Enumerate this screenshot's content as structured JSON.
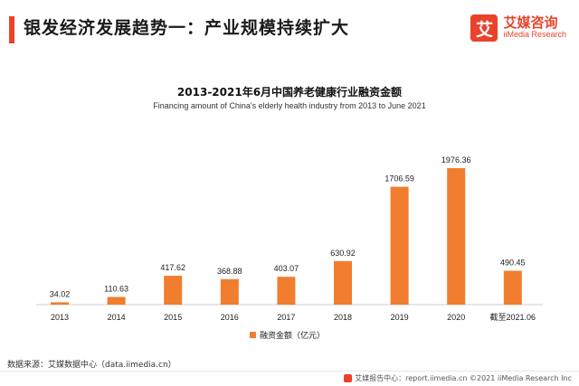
{
  "header": {
    "title": "银发经济发展趋势一：产业规模持续扩大",
    "logo_mark": "艾",
    "logo_cn": "艾媒咨询",
    "logo_en": "iiMedia Research"
  },
  "chart_data": {
    "type": "bar",
    "title": "2013-2021年6月中国养老健康行业融资金额",
    "subtitle": "Financing amount of China's elderly health industry from 2013 to June 2021",
    "categories": [
      "2013",
      "2014",
      "2015",
      "2016",
      "2017",
      "2018",
      "2019",
      "2020",
      "截至2021.06"
    ],
    "series": [
      {
        "name": "融资金额（亿元）",
        "values": [
          34.02,
          110.63,
          417.62,
          368.88,
          403.07,
          630.92,
          1706.59,
          1976.36,
          490.45
        ],
        "labels": [
          "34.02",
          "110.63",
          "417.62",
          "368.88",
          "403.07",
          "630.92",
          "1706.59",
          "1976.36",
          "490.45"
        ],
        "color": "#f07e2e"
      }
    ],
    "legend_position": "bottom-center",
    "grid": false,
    "ylim": [
      0,
      2000
    ]
  },
  "footer": {
    "source": "数据来源：艾媒数据中心（data.iimedia.cn）",
    "report": "艾媒报告中心：report.iimedia.cn  ©2021  iiMedia Research  Inc"
  }
}
